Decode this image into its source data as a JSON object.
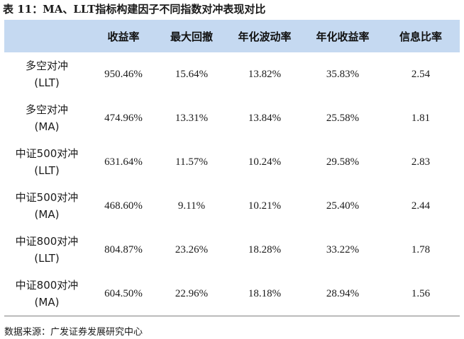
{
  "title": "表 11：MA、LLT指标构建因子不同指数对冲表现对比",
  "table": {
    "headers": [
      "",
      "收益率",
      "最大回撤",
      "年化波动率",
      "年化收益率",
      "信息比率"
    ],
    "rows": [
      {
        "name_line1": "多空对冲",
        "name_line2": "(LLT)",
        "values": [
          "950.46%",
          "15.64%",
          "13.82%",
          "35.83%",
          "2.54"
        ]
      },
      {
        "name_line1": "多空对冲",
        "name_line2": "(MA)",
        "values": [
          "474.96%",
          "13.31%",
          "13.84%",
          "25.58%",
          "1.81"
        ]
      },
      {
        "name_line1": "中证500对冲",
        "name_line2": "(LLT)",
        "values": [
          "631.64%",
          "11.57%",
          "10.24%",
          "29.58%",
          "2.83"
        ]
      },
      {
        "name_line1": "中证500对冲",
        "name_line2": "(MA)",
        "values": [
          "468.60%",
          "9.11%",
          "10.21%",
          "25.40%",
          "2.44"
        ]
      },
      {
        "name_line1": "中证800对冲",
        "name_line2": "(LLT)",
        "values": [
          "804.87%",
          "23.26%",
          "18.28%",
          "33.22%",
          "1.78"
        ]
      },
      {
        "name_line1": "中证800对冲",
        "name_line2": "(MA)",
        "values": [
          "604.50%",
          "22.96%",
          "18.18%",
          "28.94%",
          "1.56"
        ]
      }
    ]
  },
  "source": "数据来源：广发证券发展研究中心",
  "colors": {
    "header_bg": "#c5d9f1"
  }
}
